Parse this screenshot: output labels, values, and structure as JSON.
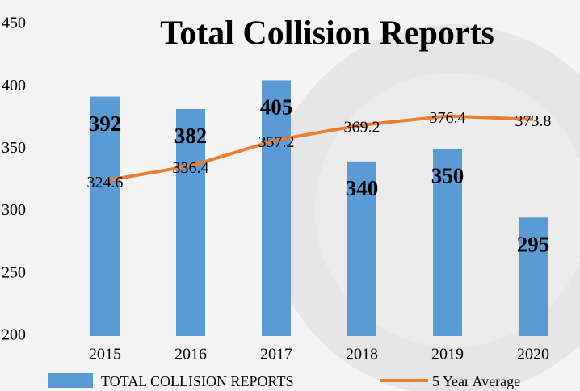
{
  "chart_data": {
    "type": "bar",
    "title": "Total Collision Reports",
    "categories": [
      "2015",
      "2016",
      "2017",
      "2018",
      "2019",
      "2020"
    ],
    "series": [
      {
        "name": "TOTAL COLLISION REPORTS",
        "type": "bar",
        "color": "#5b9bd5",
        "values": [
          392,
          382,
          405,
          340,
          350,
          295
        ]
      },
      {
        "name": "5 Year Average",
        "type": "line",
        "color": "#ed7d31",
        "values": [
          324.6,
          336.4,
          357.2,
          369.2,
          376.4,
          373.8
        ]
      }
    ],
    "ylim": [
      200,
      450
    ],
    "yticks": [
      200,
      250,
      300,
      350,
      400,
      450
    ],
    "grid": false
  }
}
